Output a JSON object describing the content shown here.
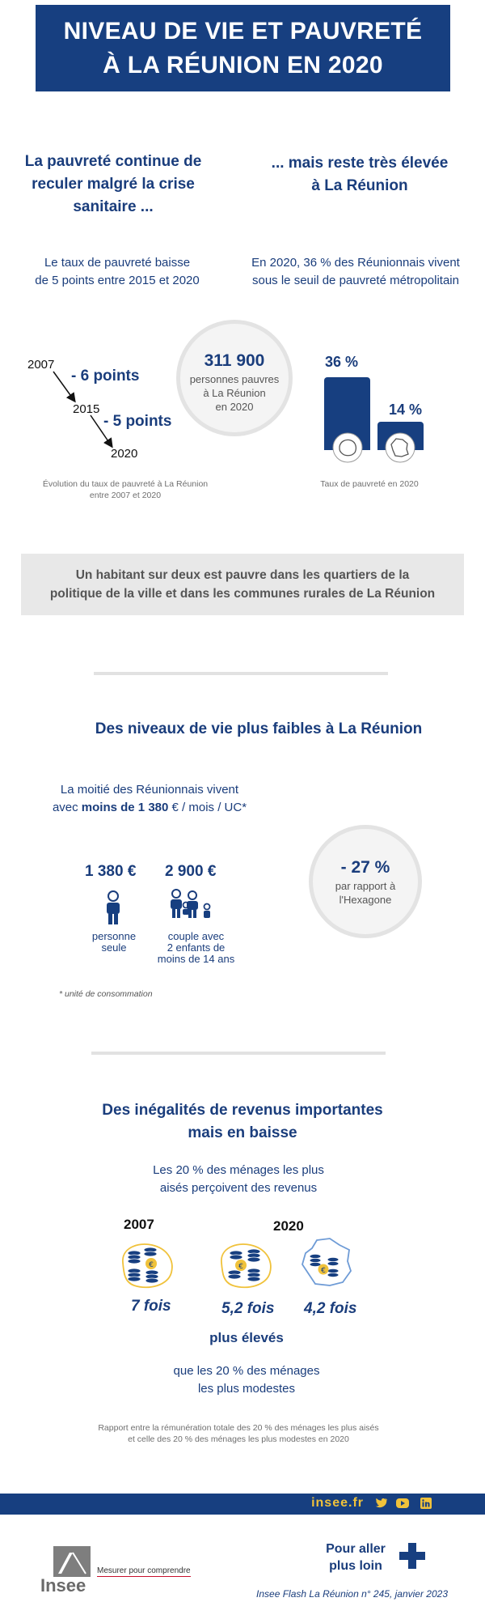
{
  "title": {
    "line1": "NIVEAU DE VIE ET PAUVRETÉ",
    "line2": "À LA RÉUNION EN 2020"
  },
  "section1": {
    "left_heading": [
      "La pauvreté continue de",
      "reculer malgré la crise",
      "sanitaire ..."
    ],
    "right_heading": [
      "... mais reste très élevée",
      "à La Réunion"
    ],
    "left_text": [
      "Le taux de pauvreté baisse",
      "de 5 points entre 2015 et 2020"
    ],
    "right_text": [
      "En 2020, 36 % des Réunionnais vivent",
      "sous le seuil de pauvreté métropolitain"
    ],
    "evolution": {
      "year1": "2007",
      "drop1": "- 6 points",
      "year2": "2015",
      "drop2": "- 5 points",
      "year3": "2020",
      "caption": [
        "Évolution du taux de pauvreté à La Réunion",
        "entre 2007 et 2020"
      ]
    },
    "poor_circle": {
      "value": "311 900",
      "label": [
        "personnes pauvres",
        "à La Réunion",
        "en 2020"
      ]
    },
    "rate_chart": {
      "bars": [
        {
          "label": "36 %",
          "value": 36,
          "icon": "reunion-island-icon"
        },
        {
          "label": "14 %",
          "value": 14,
          "icon": "france-map-icon"
        }
      ],
      "caption": "Taux de pauvreté en 2020"
    }
  },
  "highlight_box": [
    "Un habitant sur deux est pauvre dans les quartiers de la",
    "politique de la ville et dans les communes rurales de La Réunion"
  ],
  "section2": {
    "heading": "Des niveaux de vie plus faibles à La Réunion",
    "text_line1": "La moitié des Réunionnais vivent",
    "text_line2_pre": "avec ",
    "text_line2_bold": "moins de 1 380",
    "text_line2_post": " € / mois / UC*",
    "single": {
      "amount": "1 380 €",
      "label": [
        "personne",
        "seule"
      ]
    },
    "couple": {
      "amount": "2 900 €",
      "label": [
        "couple avec",
        "2 enfants de",
        "moins de 14 ans"
      ]
    },
    "diff_circle": {
      "value": "- 27 %",
      "label": [
        "par rapport à",
        "l'Hexagone"
      ]
    },
    "footnote": "* unité de consommation"
  },
  "section3": {
    "heading": [
      "Des inégalités de revenus importantes",
      "mais en baisse"
    ],
    "intro": [
      "Les 20 % des ménages les plus",
      "aisés perçoivent des revenus"
    ],
    "year_2007": "2007",
    "year_2020": "2020",
    "ratios": [
      "7 fois",
      "5,2 fois",
      "4,2 fois"
    ],
    "higher": "plus élevés",
    "outro": [
      "que les 20 % des ménages",
      "les plus modestes"
    ],
    "caption": [
      "Rapport entre la rémunération totale des 20 % des ménages les plus aisés",
      "et celle des 20 % des ménages les plus modestes en 2020"
    ]
  },
  "footer": {
    "url": "insee.fr",
    "more": [
      "Pour aller",
      "plus loin"
    ],
    "logo_text": "Insee",
    "tagline": "Mesurer pour comprendre",
    "reference": "Insee Flash La Réunion n° 245, janvier 2023"
  },
  "colors": {
    "navy": "#173f80",
    "gold": "#f0c23b",
    "grey": "#e8e8e8"
  }
}
